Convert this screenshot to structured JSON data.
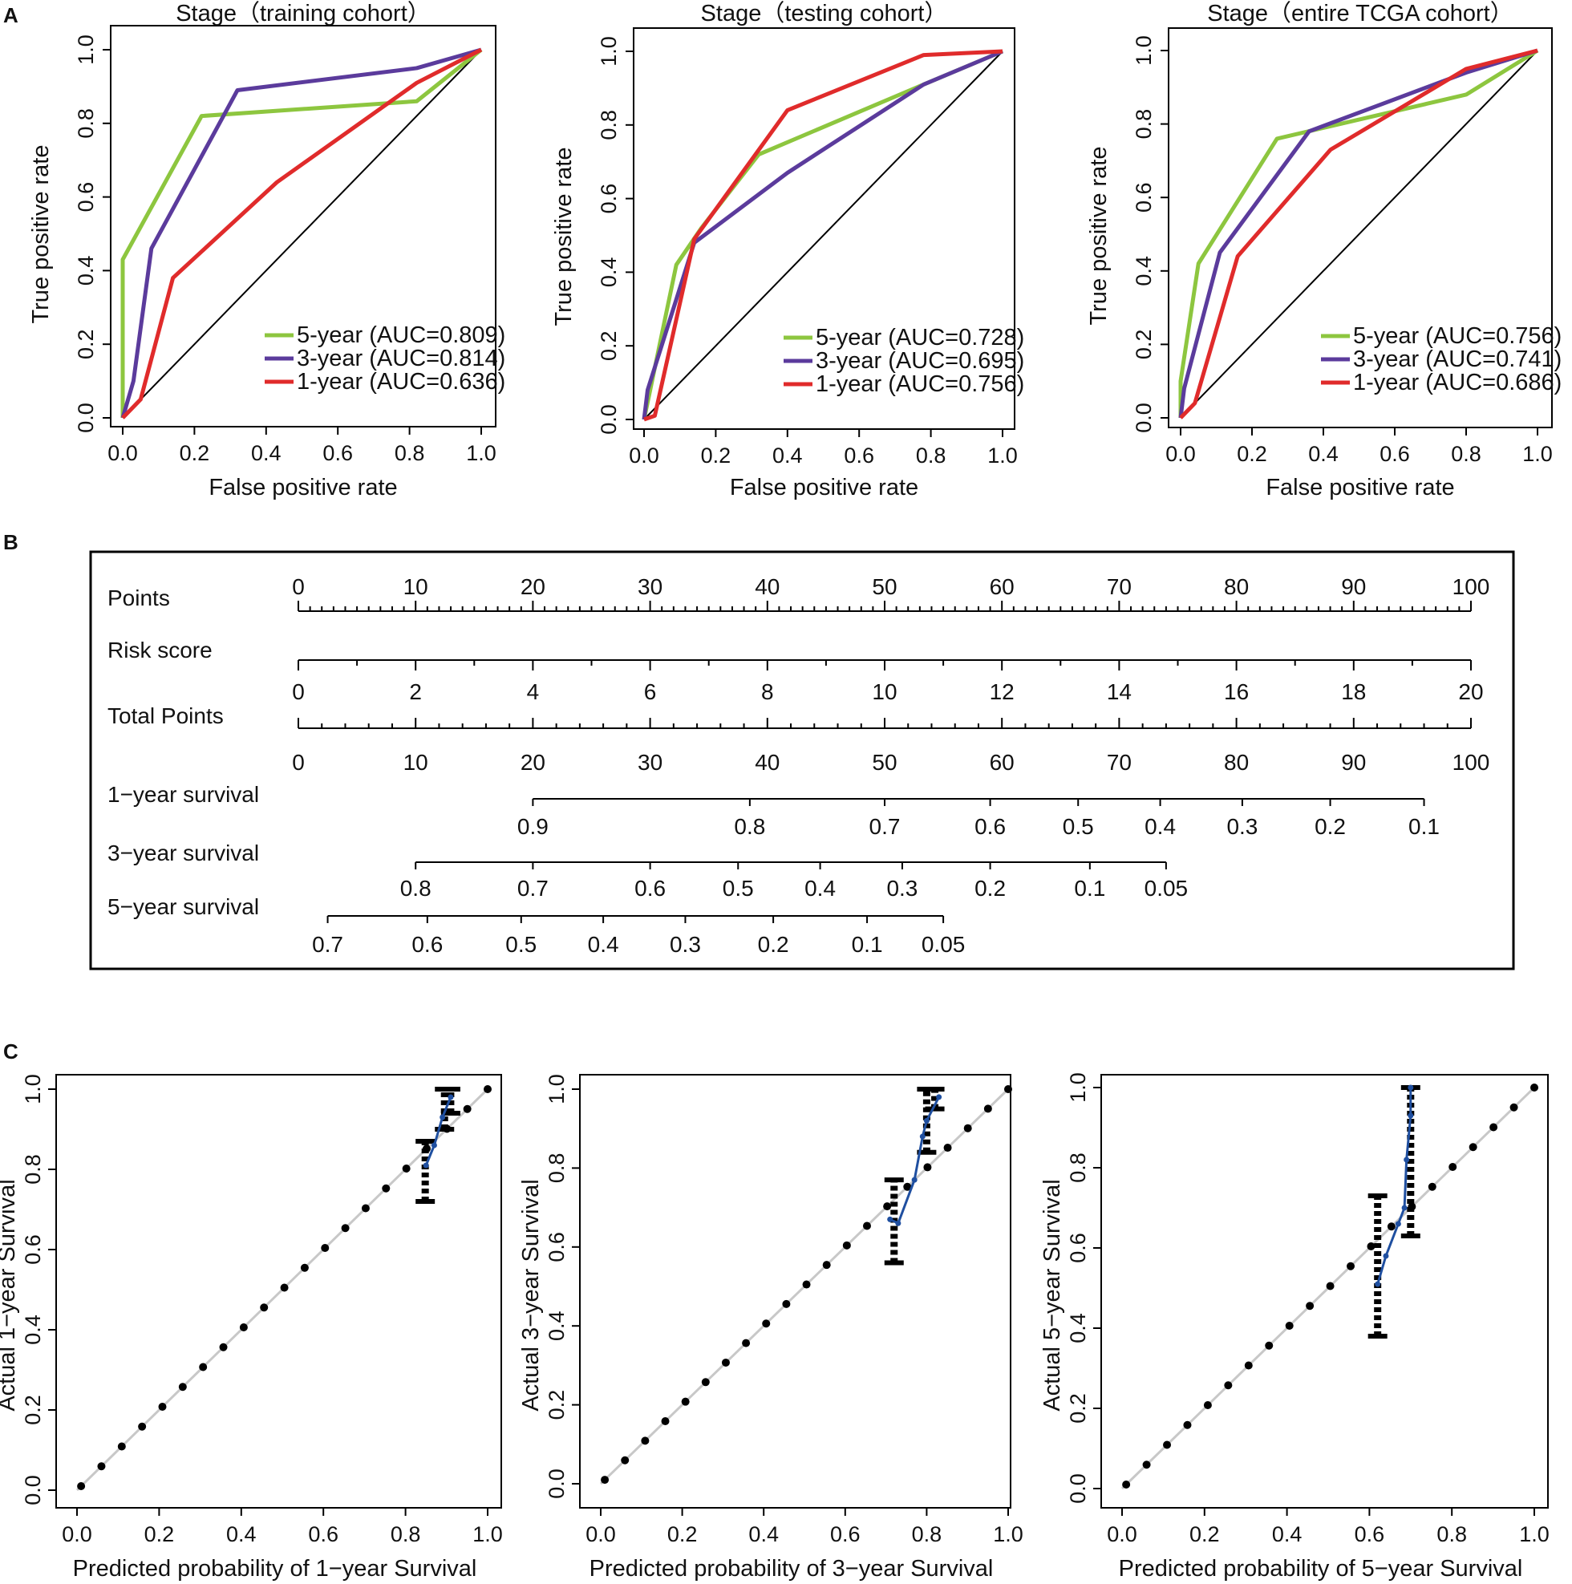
{
  "panels": {
    "A": "A",
    "B": "B",
    "C": "C"
  },
  "roc": {
    "xlabel": "False positive rate",
    "ylabel": "True positive rate",
    "ticks": [
      "0.0",
      "0.2",
      "0.4",
      "0.6",
      "0.8",
      "1.0"
    ],
    "colors": {
      "5-year": "#8dc63f",
      "3-year": "#5b3b9c",
      "1-year": "#e02b2b"
    }
  },
  "calibration": {
    "ticks": [
      "0.0",
      "0.2",
      "0.4",
      "0.6",
      "0.8",
      "1.0"
    ],
    "ideal_color": "#c8c8c8",
    "fit_color": "#1f4fa0"
  },
  "nomogram": {
    "rows": [
      {
        "label": "Points"
      },
      {
        "label": "Risk score"
      },
      {
        "label": "Total Points"
      },
      {
        "label": "1−year survival"
      },
      {
        "label": "3−year survival"
      },
      {
        "label": "5−year survival"
      }
    ],
    "points_scale": [
      "0",
      "10",
      "20",
      "30",
      "40",
      "50",
      "60",
      "70",
      "80",
      "90",
      "100"
    ],
    "risk_scale": [
      "0",
      "2",
      "4",
      "6",
      "8",
      "10",
      "12",
      "14",
      "16",
      "18",
      "20"
    ],
    "total_scale": [
      "0",
      "10",
      "20",
      "30",
      "40",
      "50",
      "60",
      "70",
      "80",
      "90",
      "100"
    ],
    "surv1": [
      {
        "label": "0.9",
        "points": 20
      },
      {
        "label": "0.8",
        "points": 38.5
      },
      {
        "label": "0.7",
        "points": 50
      },
      {
        "label": "0.6",
        "points": 59
      },
      {
        "label": "0.5",
        "points": 66.5
      },
      {
        "label": "0.4",
        "points": 73.5
      },
      {
        "label": "0.3",
        "points": 80.5
      },
      {
        "label": "0.2",
        "points": 88
      },
      {
        "label": "0.1",
        "points": 96
      }
    ],
    "surv3": [
      {
        "label": "0.8",
        "points": 10
      },
      {
        "label": "0.7",
        "points": 20
      },
      {
        "label": "0.6",
        "points": 30
      },
      {
        "label": "0.5",
        "points": 37.5
      },
      {
        "label": "0.4",
        "points": 44.5
      },
      {
        "label": "0.3",
        "points": 51.5
      },
      {
        "label": "0.2",
        "points": 59
      },
      {
        "label": "0.1",
        "points": 67.5
      },
      {
        "label": "0.05",
        "points": 74
      }
    ],
    "surv5": [
      {
        "label": "0.7",
        "points": 2.5
      },
      {
        "label": "0.6",
        "points": 11
      },
      {
        "label": "0.5",
        "points": 19
      },
      {
        "label": "0.4",
        "points": 26
      },
      {
        "label": "0.3",
        "points": 33
      },
      {
        "label": "0.2",
        "points": 40.5
      },
      {
        "label": "0.1",
        "points": 48.5
      },
      {
        "label": "0.05",
        "points": 55
      }
    ]
  },
  "chart_data": [
    {
      "type": "line",
      "panel": "A",
      "title": "Stage（training cohort）",
      "xlabel": "False positive rate",
      "ylabel": "True positive rate",
      "xlim": [
        0,
        1
      ],
      "ylim": [
        0,
        1
      ],
      "series": [
        {
          "name": "5-year",
          "legend": "5-year (AUC=0.809)",
          "points": [
            [
              0,
              0
            ],
            [
              0,
              0.43
            ],
            [
              0.22,
              0.82
            ],
            [
              0.82,
              0.86
            ],
            [
              1,
              1
            ]
          ]
        },
        {
          "name": "3-year",
          "legend": "3-year (AUC=0.814)",
          "points": [
            [
              0,
              0
            ],
            [
              0.03,
              0.1
            ],
            [
              0.08,
              0.46
            ],
            [
              0.32,
              0.89
            ],
            [
              0.82,
              0.95
            ],
            [
              1,
              1
            ]
          ]
        },
        {
          "name": "1-year",
          "legend": "1-year (AUC=0.636)",
          "points": [
            [
              0,
              0
            ],
            [
              0.05,
              0.05
            ],
            [
              0.14,
              0.38
            ],
            [
              0.43,
              0.64
            ],
            [
              0.82,
              0.91
            ],
            [
              1,
              1
            ]
          ]
        }
      ]
    },
    {
      "type": "line",
      "panel": "A",
      "title": "Stage（testing cohort）",
      "xlabel": "False positive rate",
      "ylabel": "True positive rate",
      "xlim": [
        0,
        1
      ],
      "ylim": [
        0,
        1
      ],
      "series": [
        {
          "name": "5-year",
          "legend": "5-year (AUC=0.728)",
          "points": [
            [
              0,
              0
            ],
            [
              0.09,
              0.42
            ],
            [
              0.16,
              0.52
            ],
            [
              0.32,
              0.72
            ],
            [
              0.78,
              0.91
            ],
            [
              1,
              1
            ]
          ]
        },
        {
          "name": "3-year",
          "legend": "3-year (AUC=0.695)",
          "points": [
            [
              0,
              0
            ],
            [
              0.01,
              0.08
            ],
            [
              0.14,
              0.48
            ],
            [
              0.4,
              0.67
            ],
            [
              0.78,
              0.91
            ],
            [
              1,
              1
            ]
          ]
        },
        {
          "name": "1-year",
          "legend": "1-year (AUC=0.756)",
          "points": [
            [
              0,
              0
            ],
            [
              0.03,
              0.01
            ],
            [
              0.14,
              0.49
            ],
            [
              0.4,
              0.84
            ],
            [
              0.78,
              0.99
            ],
            [
              1,
              1
            ]
          ]
        }
      ]
    },
    {
      "type": "line",
      "panel": "A",
      "title": "Stage（entire TCGA cohort）",
      "xlabel": "False positive rate",
      "ylabel": "True positive rate",
      "xlim": [
        0,
        1
      ],
      "ylim": [
        0,
        1
      ],
      "series": [
        {
          "name": "5-year",
          "legend": "5-year (AUC=0.756)",
          "points": [
            [
              0,
              0
            ],
            [
              0,
              0.1
            ],
            [
              0.05,
              0.42
            ],
            [
              0.27,
              0.76
            ],
            [
              0.8,
              0.88
            ],
            [
              1,
              1
            ]
          ]
        },
        {
          "name": "3-year",
          "legend": "3-year (AUC=0.741)",
          "points": [
            [
              0,
              0
            ],
            [
              0.01,
              0.08
            ],
            [
              0.11,
              0.45
            ],
            [
              0.36,
              0.78
            ],
            [
              0.8,
              0.94
            ],
            [
              1,
              1
            ]
          ]
        },
        {
          "name": "1-year",
          "legend": "1-year (AUC=0.686)",
          "points": [
            [
              0,
              0
            ],
            [
              0.04,
              0.04
            ],
            [
              0.16,
              0.44
            ],
            [
              0.42,
              0.73
            ],
            [
              0.8,
              0.95
            ],
            [
              1,
              1
            ]
          ]
        }
      ]
    },
    {
      "type": "scatter",
      "panel": "C",
      "xlabel": "Predicted probability of 1−year Survival",
      "ylabel": "Actual 1−year Survival",
      "xlim": [
        0,
        1
      ],
      "ylim": [
        0,
        1
      ],
      "fit": [
        [
          0.85,
          0.81
        ],
        [
          0.87,
          0.86
        ],
        [
          0.89,
          0.93
        ],
        [
          0.91,
          0.98
        ]
      ],
      "observed": [
        [
          0.848,
          0.72,
          0.87
        ],
        [
          0.895,
          0.9,
          1.0
        ],
        [
          0.91,
          0.94,
          1.0
        ]
      ]
    },
    {
      "type": "scatter",
      "panel": "C",
      "xlabel": "Predicted probability of 3−year Survival",
      "ylabel": "Actual 3−year Survival",
      "xlim": [
        0,
        1
      ],
      "ylim": [
        0,
        1
      ],
      "fit": [
        [
          0.71,
          0.67
        ],
        [
          0.73,
          0.66
        ],
        [
          0.77,
          0.77
        ],
        [
          0.79,
          0.88
        ],
        [
          0.8,
          0.92
        ],
        [
          0.83,
          0.98
        ]
      ],
      "observed": [
        [
          0.72,
          0.56,
          0.77
        ],
        [
          0.8,
          0.84,
          1.0
        ],
        [
          0.82,
          0.95,
          1.0
        ]
      ]
    },
    {
      "type": "scatter",
      "panel": "C",
      "xlabel": "Predicted probability of 5−year Survival",
      "ylabel": "Actual 5−year Survival",
      "xlim": [
        0,
        1
      ],
      "ylim": [
        0,
        1
      ],
      "fit": [
        [
          0.62,
          0.51
        ],
        [
          0.64,
          0.58
        ],
        [
          0.67,
          0.66
        ],
        [
          0.685,
          0.7
        ],
        [
          0.69,
          0.82
        ],
        [
          0.7,
          0.93
        ],
        [
          0.7,
          1.0
        ]
      ],
      "observed": [
        [
          0.62,
          0.38,
          0.73
        ],
        [
          0.7,
          0.63,
          1.0
        ]
      ]
    }
  ]
}
